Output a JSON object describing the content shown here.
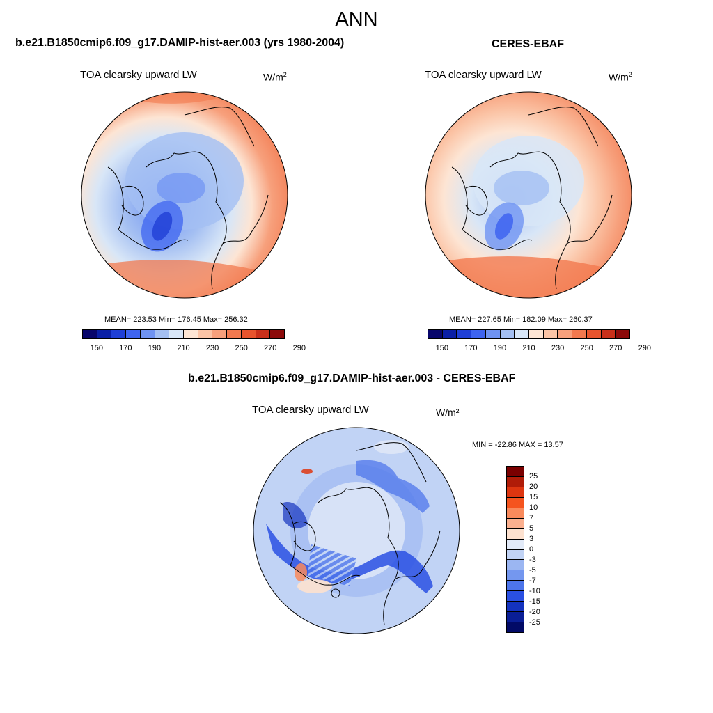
{
  "title": "ANN",
  "panels": [
    {
      "case_title": "b.e21.B1850cmip6.f09_g17.DAMIP-hist-aer.003 (yrs 1980-2004)",
      "variable": "TOA clearsky upward LW",
      "units_base": "W/m",
      "units_exp": "2",
      "stats_text": "MEAN= 223.53  Min= 176.45  Max= 256.32",
      "mean": 223.53,
      "min": 176.45,
      "max": 256.32
    },
    {
      "case_title": "CERES-EBAF",
      "variable": "TOA clearsky upward LW",
      "units_base": "W/m",
      "units_exp": "2",
      "stats_text": "MEAN= 227.65  Min= 182.09  Max= 260.37",
      "mean": 227.65,
      "min": 182.09,
      "max": 260.37
    }
  ],
  "diff": {
    "case_title": "b.e21.B1850cmip6.f09_g17.DAMIP-hist-aer.003 - CERES-EBAF",
    "variable": "TOA clearsky upward LW",
    "units": "W/m²",
    "stats_text": "MIN = -22.86 MAX =  13.57",
    "min": -22.86,
    "max": 13.57
  },
  "colorbar_abs": {
    "tick_labels": [
      "150",
      "170",
      "190",
      "210",
      "230",
      "250",
      "270",
      "290"
    ],
    "colors": [
      "#08066b",
      "#0a1fa6",
      "#1f3fd6",
      "#3e64f0",
      "#6f93f2",
      "#a4bff2",
      "#d8e6f7",
      "#fde5d4",
      "#fbc4a6",
      "#f7a07c",
      "#f2794f",
      "#e8542d",
      "#c9301a",
      "#8c0a0a"
    ]
  },
  "colorbar_diff": {
    "labels": [
      "25",
      "20",
      "15",
      "10",
      "7",
      "5",
      "3",
      "0",
      "-3",
      "-5",
      "-7",
      "-10",
      "-15",
      "-20",
      "-25"
    ],
    "colors": [
      "#7a0000",
      "#b01c08",
      "#de3610",
      "#f5541e",
      "#f98a5c",
      "#fbb08f",
      "#fde1cf",
      "#e2eaf8",
      "#c1d3f5",
      "#9bb6f2",
      "#7497ef",
      "#4d75eb",
      "#2a50e3",
      "#1433bf",
      "#0a1e96",
      "#020a66"
    ]
  }
}
